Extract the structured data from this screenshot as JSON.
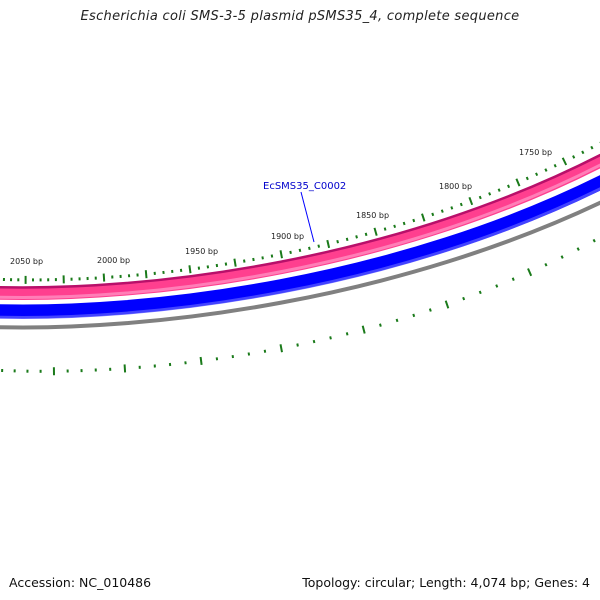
{
  "title": "Escherichia coli SMS-3-5 plasmid pSMS35_4, complete sequence",
  "accession": {
    "label": "Accession:",
    "value": "NC_010486"
  },
  "summary": {
    "topology_label": "Topology:",
    "topology": "circular",
    "length_label": "Length:",
    "length": "4,074 bp",
    "genes_label": "Genes:",
    "genes": "4"
  },
  "tick_labels": [
    "1750 bp",
    "1800 bp",
    "1850 bp",
    "1900 bp",
    "1950 bp",
    "2000 bp",
    "2050 bp"
  ],
  "gene_label": "EcSMS35_C0002",
  "colors": {
    "outer_band": "#ff3f8f",
    "outer_band_edge": "#b8106a",
    "inner_band": "#0000ff",
    "backbone": "#808080",
    "tick": "#1a7a1a",
    "gene_label": "#0000cc",
    "gene_pointer": "#0000ff"
  }
}
